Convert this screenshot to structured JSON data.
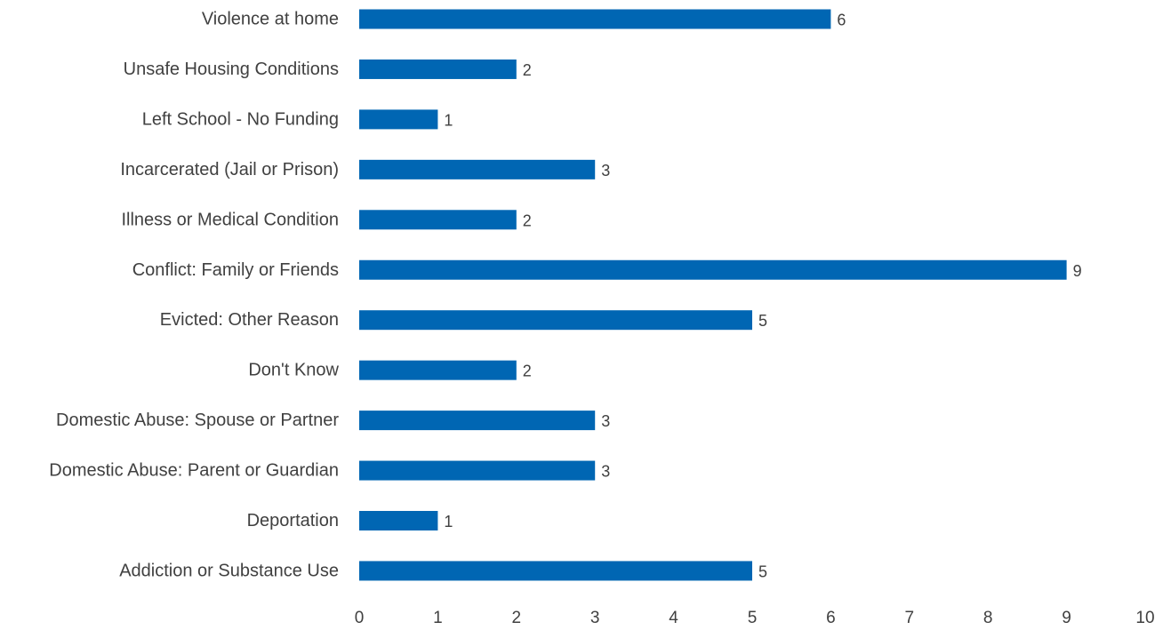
{
  "chart_data": {
    "type": "bar",
    "orientation": "horizontal",
    "categories": [
      "Violence at home",
      "Unsafe Housing Conditions",
      "Left School - No Funding",
      "Incarcerated (Jail or Prison)",
      "Illness or Medical Condition",
      "Conflict: Family or Friends ",
      "Evicted: Other Reason",
      "Don't Know",
      "Domestic Abuse: Spouse or Partner",
      "Domestic Abuse: Parent or Guardian",
      "Deportation",
      "Addiction or Substance Use"
    ],
    "values": [
      6,
      2,
      1,
      3,
      2,
      9,
      5,
      2,
      3,
      3,
      1,
      5
    ],
    "xlim": [
      0,
      10
    ],
    "x_ticks": [
      "0",
      "1",
      "2",
      "3",
      "4",
      "5",
      "6",
      "7",
      "8",
      "9",
      "10"
    ],
    "data_labels": true,
    "grid": false,
    "legend": "none",
    "title": "",
    "xlabel": "",
    "ylabel": "",
    "bar_color": "#0066B3",
    "text_color": "#404040"
  }
}
